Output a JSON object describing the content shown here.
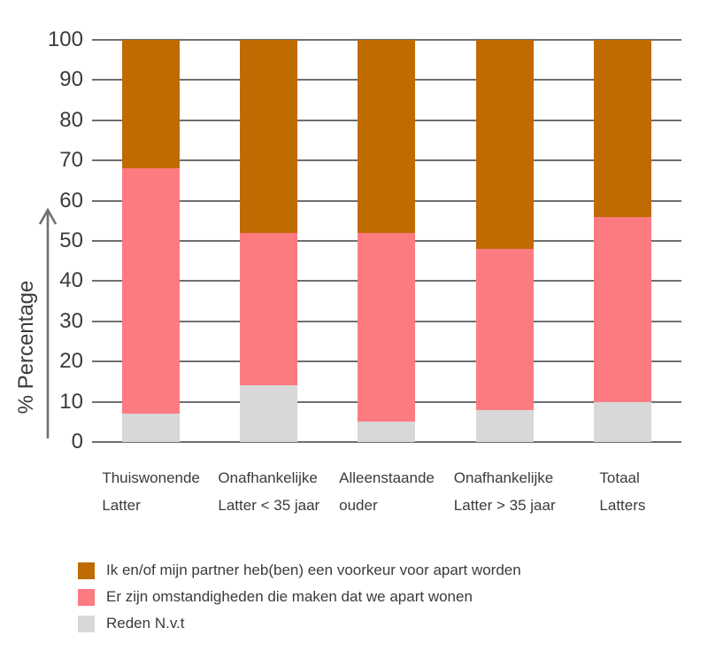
{
  "chart_data": {
    "type": "bar",
    "stacked": true,
    "title": "",
    "xlabel": "",
    "ylabel": "% Percentage",
    "ylim": [
      0,
      100
    ],
    "yticks": [
      0,
      10,
      20,
      30,
      40,
      50,
      60,
      70,
      80,
      90,
      100
    ],
    "grid": true,
    "legend_position": "bottom",
    "categories": [
      "Thuiswonende Latter",
      "Onafhankelijke Latter < 35 jaar",
      "Alleenstaande ouder",
      "Onafhankelijke Latter > 35 jaar",
      "Totaal Latters"
    ],
    "category_lines": [
      [
        "Thuiswonende",
        "Latter"
      ],
      [
        "Onafhankelijke",
        "Latter < 35 jaar"
      ],
      [
        "Alleenstaande",
        "ouder"
      ],
      [
        "Onafhankelijke",
        "Latter > 35 jaar"
      ],
      [
        "Totaal",
        "Latters"
      ]
    ],
    "series": [
      {
        "name": "Ik en/of mijn partner heb(ben) een voorkeur voor apart worden",
        "color": "#c06a02",
        "values": [
          32,
          48,
          48,
          52,
          44
        ]
      },
      {
        "name": "Er zijn omstandigheden die maken dat we apart wonen",
        "color": "#fc7b81",
        "values": [
          61,
          38,
          47,
          40,
          46
        ]
      },
      {
        "name": "Reden N.v.t",
        "color": "#d8d8d8",
        "values": [
          7,
          14,
          5,
          8,
          10
        ]
      }
    ],
    "colors": {
      "gridline": "#6f6f6f",
      "axis_text": "#3b3b3b",
      "arrow": "#707070"
    }
  }
}
